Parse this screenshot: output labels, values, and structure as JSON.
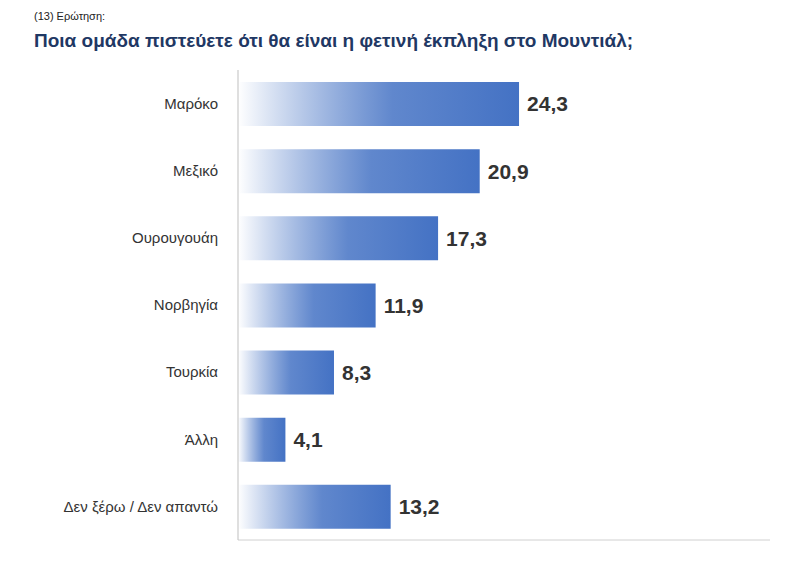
{
  "chart_data": {
    "type": "bar",
    "orientation": "horizontal",
    "subtitle": "(13) Ερώτηση:",
    "title": "Ποια ομάδα πιστεύετε ότι θα είναι η φετινή έκπληξη στο Μουντιάλ;",
    "categories": [
      "Μαρόκο",
      "Μεξικό",
      "Ουρουγουάη",
      "Νορβηγία",
      "Τουρκία",
      "Άλλη",
      "Δεν ξέρω / Δεν απαντώ"
    ],
    "values": [
      24.3,
      20.9,
      17.3,
      11.9,
      8.3,
      4.1,
      13.2
    ],
    "value_labels": [
      "24,3",
      "20,9",
      "17,3",
      "11,9",
      "8,3",
      "4,1",
      "13,2"
    ],
    "data_labels": true,
    "color": "#4472c4",
    "xlim": [
      0,
      46
    ],
    "grid": false,
    "tick_labels": "y"
  }
}
